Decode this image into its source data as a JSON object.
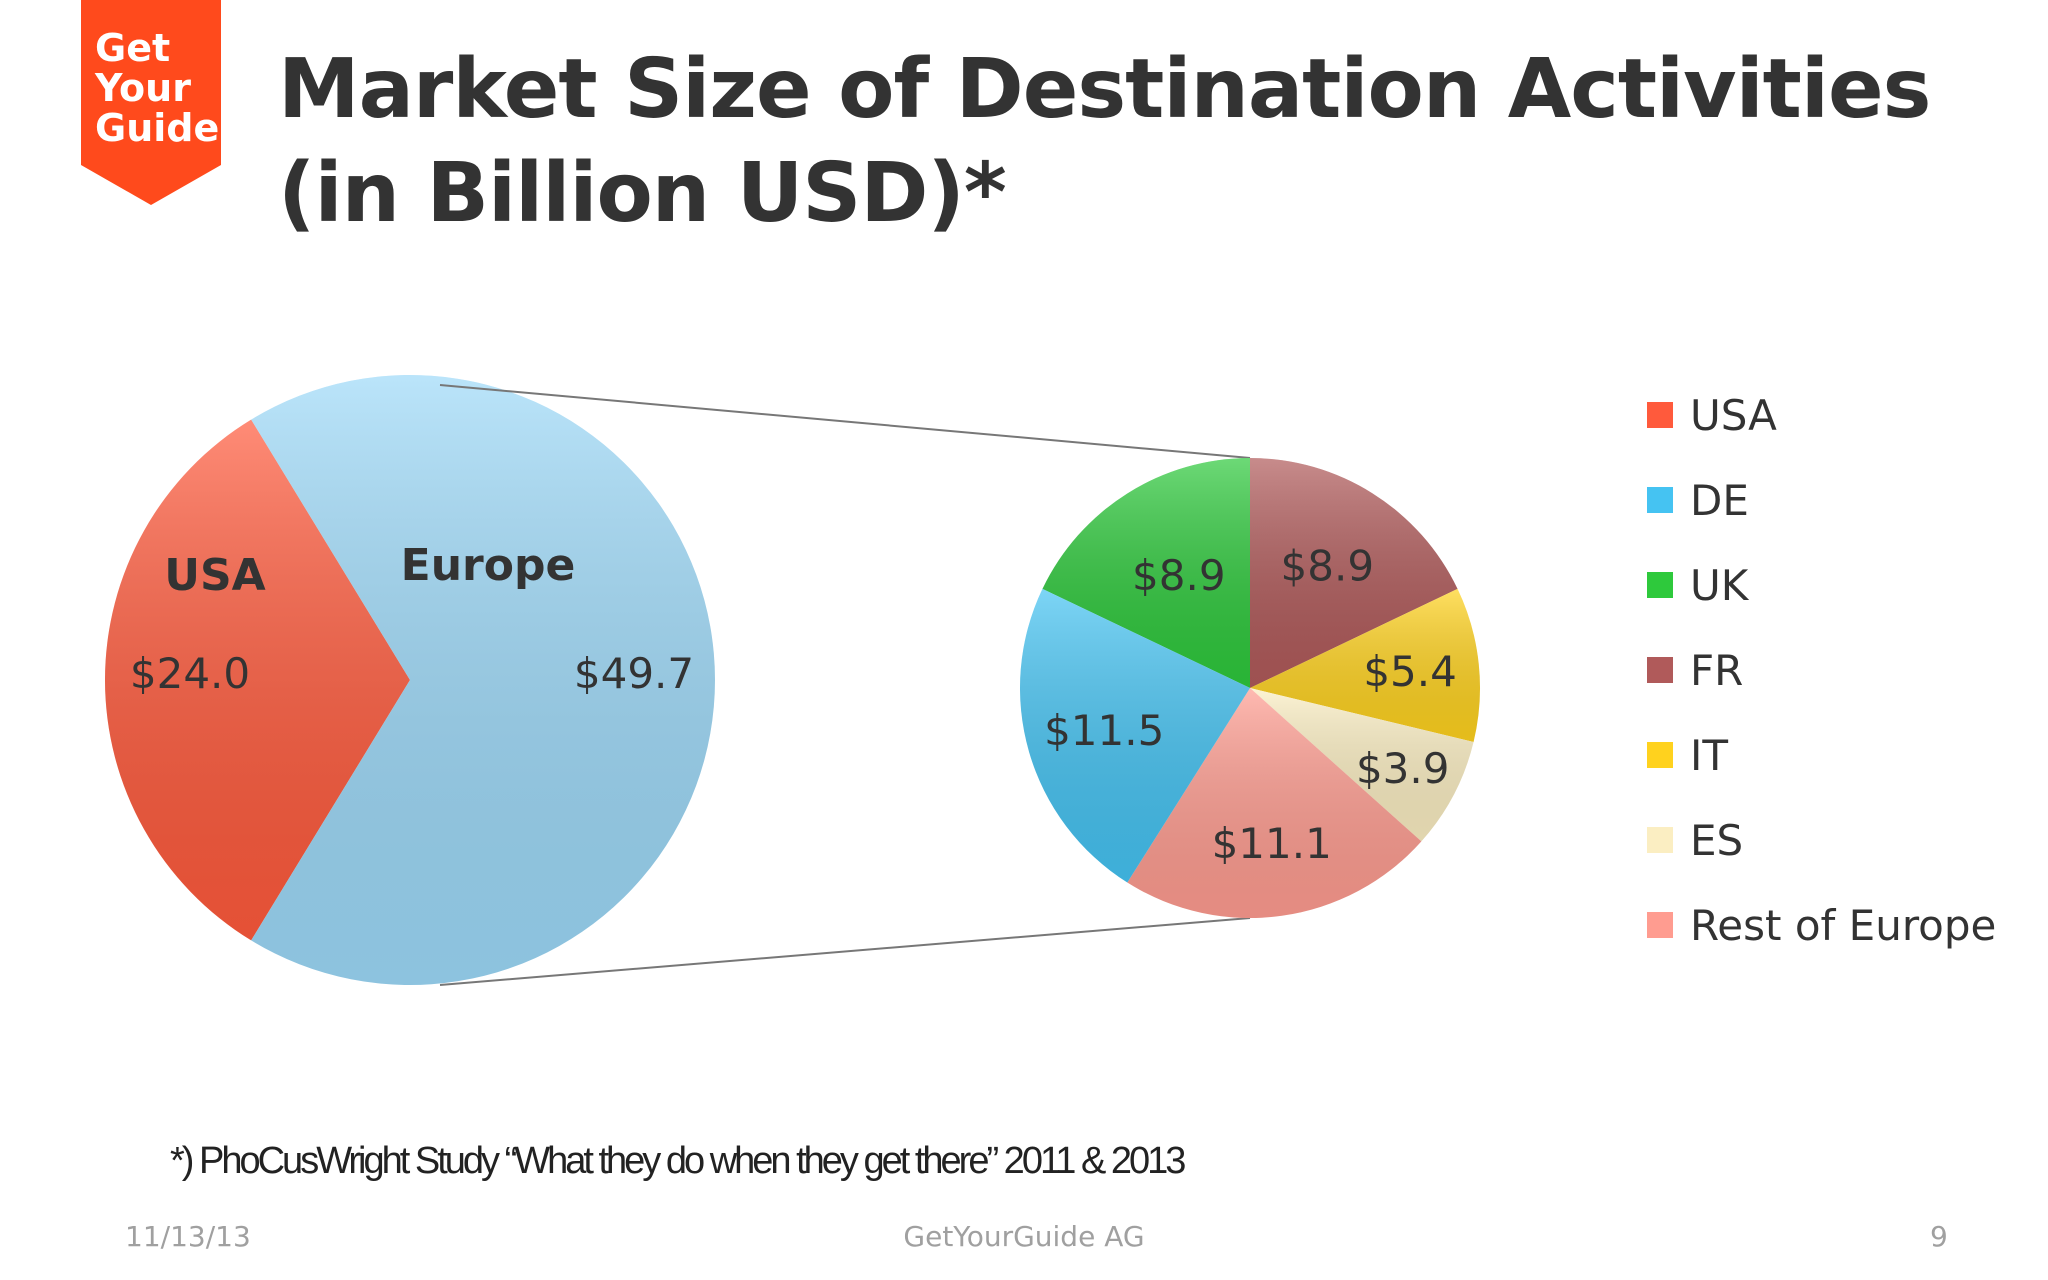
{
  "logo": {
    "lines": [
      "Get",
      "Your",
      "Guide"
    ],
    "color": "#ff4a1c"
  },
  "title": "Market Size of Destination Activities (in Billion USD)*",
  "chart_data": [
    {
      "type": "pie",
      "slices": [
        {
          "label": "USA",
          "value_label": "$24.0",
          "value": 24.0,
          "color": "#ff5a3c"
        },
        {
          "label": "Europe",
          "value_label": "$49.7",
          "value": 49.7,
          "color": "#9dd9f8"
        }
      ]
    },
    {
      "type": "pie",
      "slices": [
        {
          "label": "UK",
          "value_label": "$8.9",
          "value": 8.9,
          "color": "#2ec93c"
        },
        {
          "label": "FR",
          "value_label": "$8.9",
          "value": 8.9,
          "color": "#b05a5a"
        },
        {
          "label": "IT",
          "value_label": "$5.4",
          "value": 5.4,
          "color": "#ffd21e"
        },
        {
          "label": "ES",
          "value_label": "$3.9",
          "value": 3.9,
          "color": "#fbeec2"
        },
        {
          "label": "Rest of Europe",
          "value_label": "$11.1",
          "value": 11.1,
          "color": "#ff9c90"
        },
        {
          "label": "DE",
          "value_label": "$11.5",
          "value": 11.5,
          "color": "#45c3f2"
        }
      ],
      "legend": {
        "position": "right",
        "entries": [
          {
            "label": "USA",
            "color": "#ff5a3c"
          },
          {
            "label": "DE",
            "color": "#45c3f2"
          },
          {
            "label": "UK",
            "color": "#2ec93c"
          },
          {
            "label": "FR",
            "color": "#b05a5a"
          },
          {
            "label": "IT",
            "color": "#ffd21e"
          },
          {
            "label": "ES",
            "color": "#fbeec2"
          },
          {
            "label": "Rest of Europe",
            "color": "#ff9c90"
          }
        ]
      }
    }
  ],
  "footnote": "*) PhoCusWright Study “What they do when they get there” 2011 & 2013",
  "footer": {
    "date": "11/13/13",
    "company": "GetYourGuide AG",
    "page": "9"
  }
}
